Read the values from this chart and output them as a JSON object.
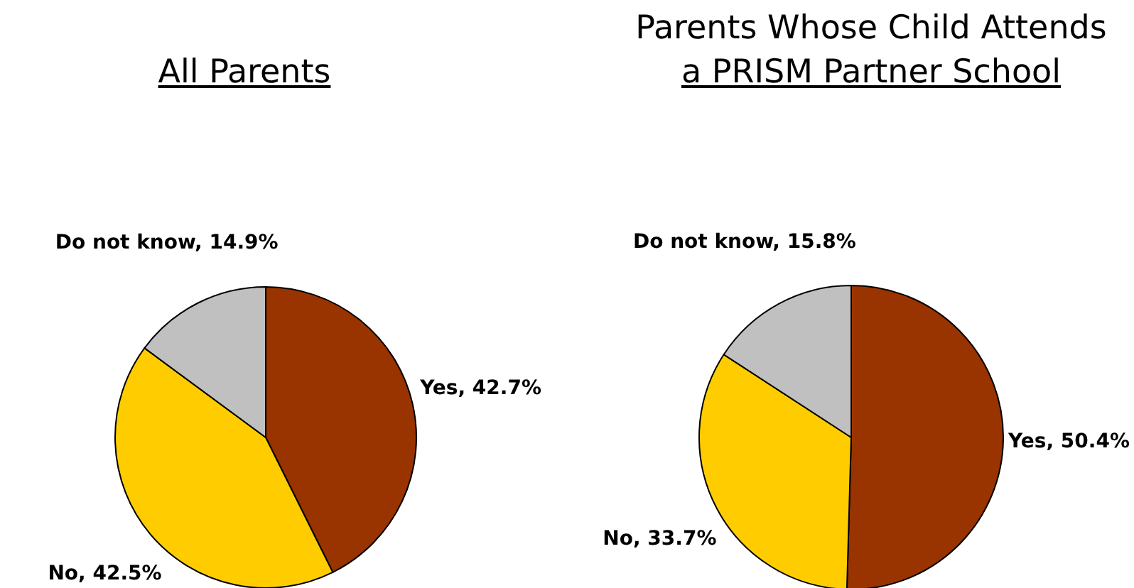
{
  "chart_data": [
    {
      "type": "pie",
      "title": "All Parents",
      "categories": [
        "Yes",
        "No",
        "Do not know"
      ],
      "values": [
        42.7,
        42.5,
        14.9
      ],
      "colors": [
        "#993300",
        "#ffcc00",
        "#c0c0c0"
      ],
      "value_labels": [
        "42.7%",
        "42.5%",
        "14.9%"
      ]
    },
    {
      "type": "pie",
      "title": "Parents Whose Child Attends\na PRISM Partner School",
      "categories": [
        "Yes",
        "No",
        "Do not know"
      ],
      "values": [
        50.4,
        33.7,
        15.8
      ],
      "colors": [
        "#993300",
        "#ffcc00",
        "#c0c0c0"
      ],
      "value_labels": [
        "50.4%",
        "33.7%",
        "15.8%"
      ]
    }
  ]
}
